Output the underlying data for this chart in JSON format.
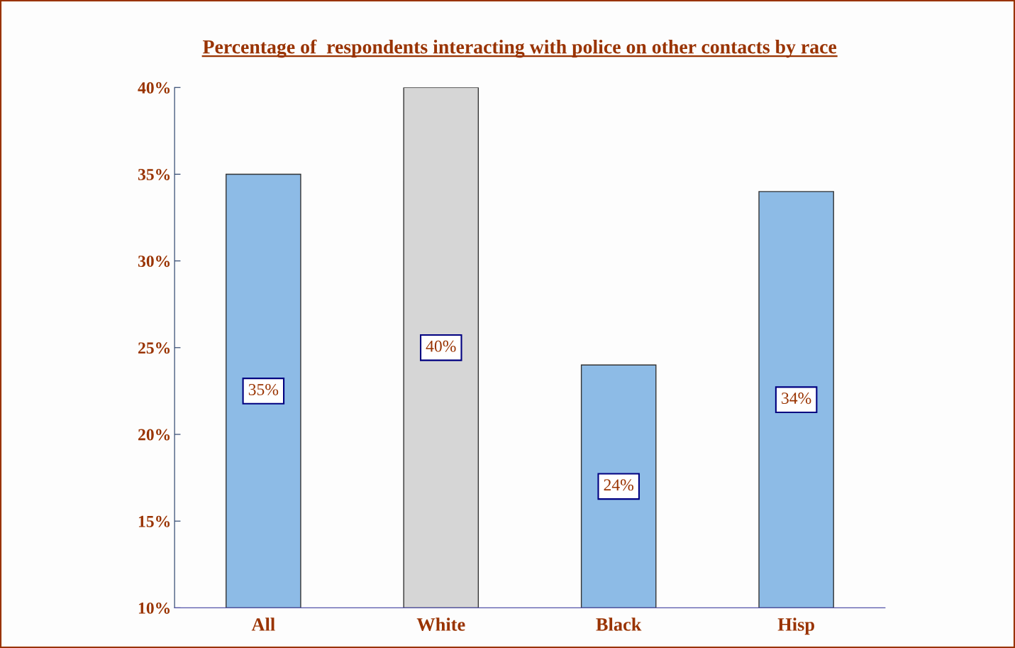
{
  "chart_data": {
    "type": "bar",
    "title": "Percentage of  respondents interacting with police on other contacts by race",
    "categories": [
      "All",
      "White",
      "Black",
      "Hisp"
    ],
    "values": [
      35,
      40,
      24,
      34
    ],
    "colors": [
      "#8dbbe6",
      "#d6d6d6",
      "#8dbbe6",
      "#8dbbe6"
    ],
    "value_labels": [
      "35%",
      "40%",
      "24%",
      "34%"
    ],
    "ylim": [
      10,
      40
    ],
    "yticks": [
      {
        "value": 10,
        "label": "10%"
      },
      {
        "value": 15,
        "label": "15%"
      },
      {
        "value": 20,
        "label": "20%"
      },
      {
        "value": 25,
        "label": "25%"
      },
      {
        "value": 30,
        "label": "30%"
      },
      {
        "value": 35,
        "label": "35%"
      },
      {
        "value": 40,
        "label": "40%"
      }
    ],
    "grid": false,
    "legend": false
  }
}
